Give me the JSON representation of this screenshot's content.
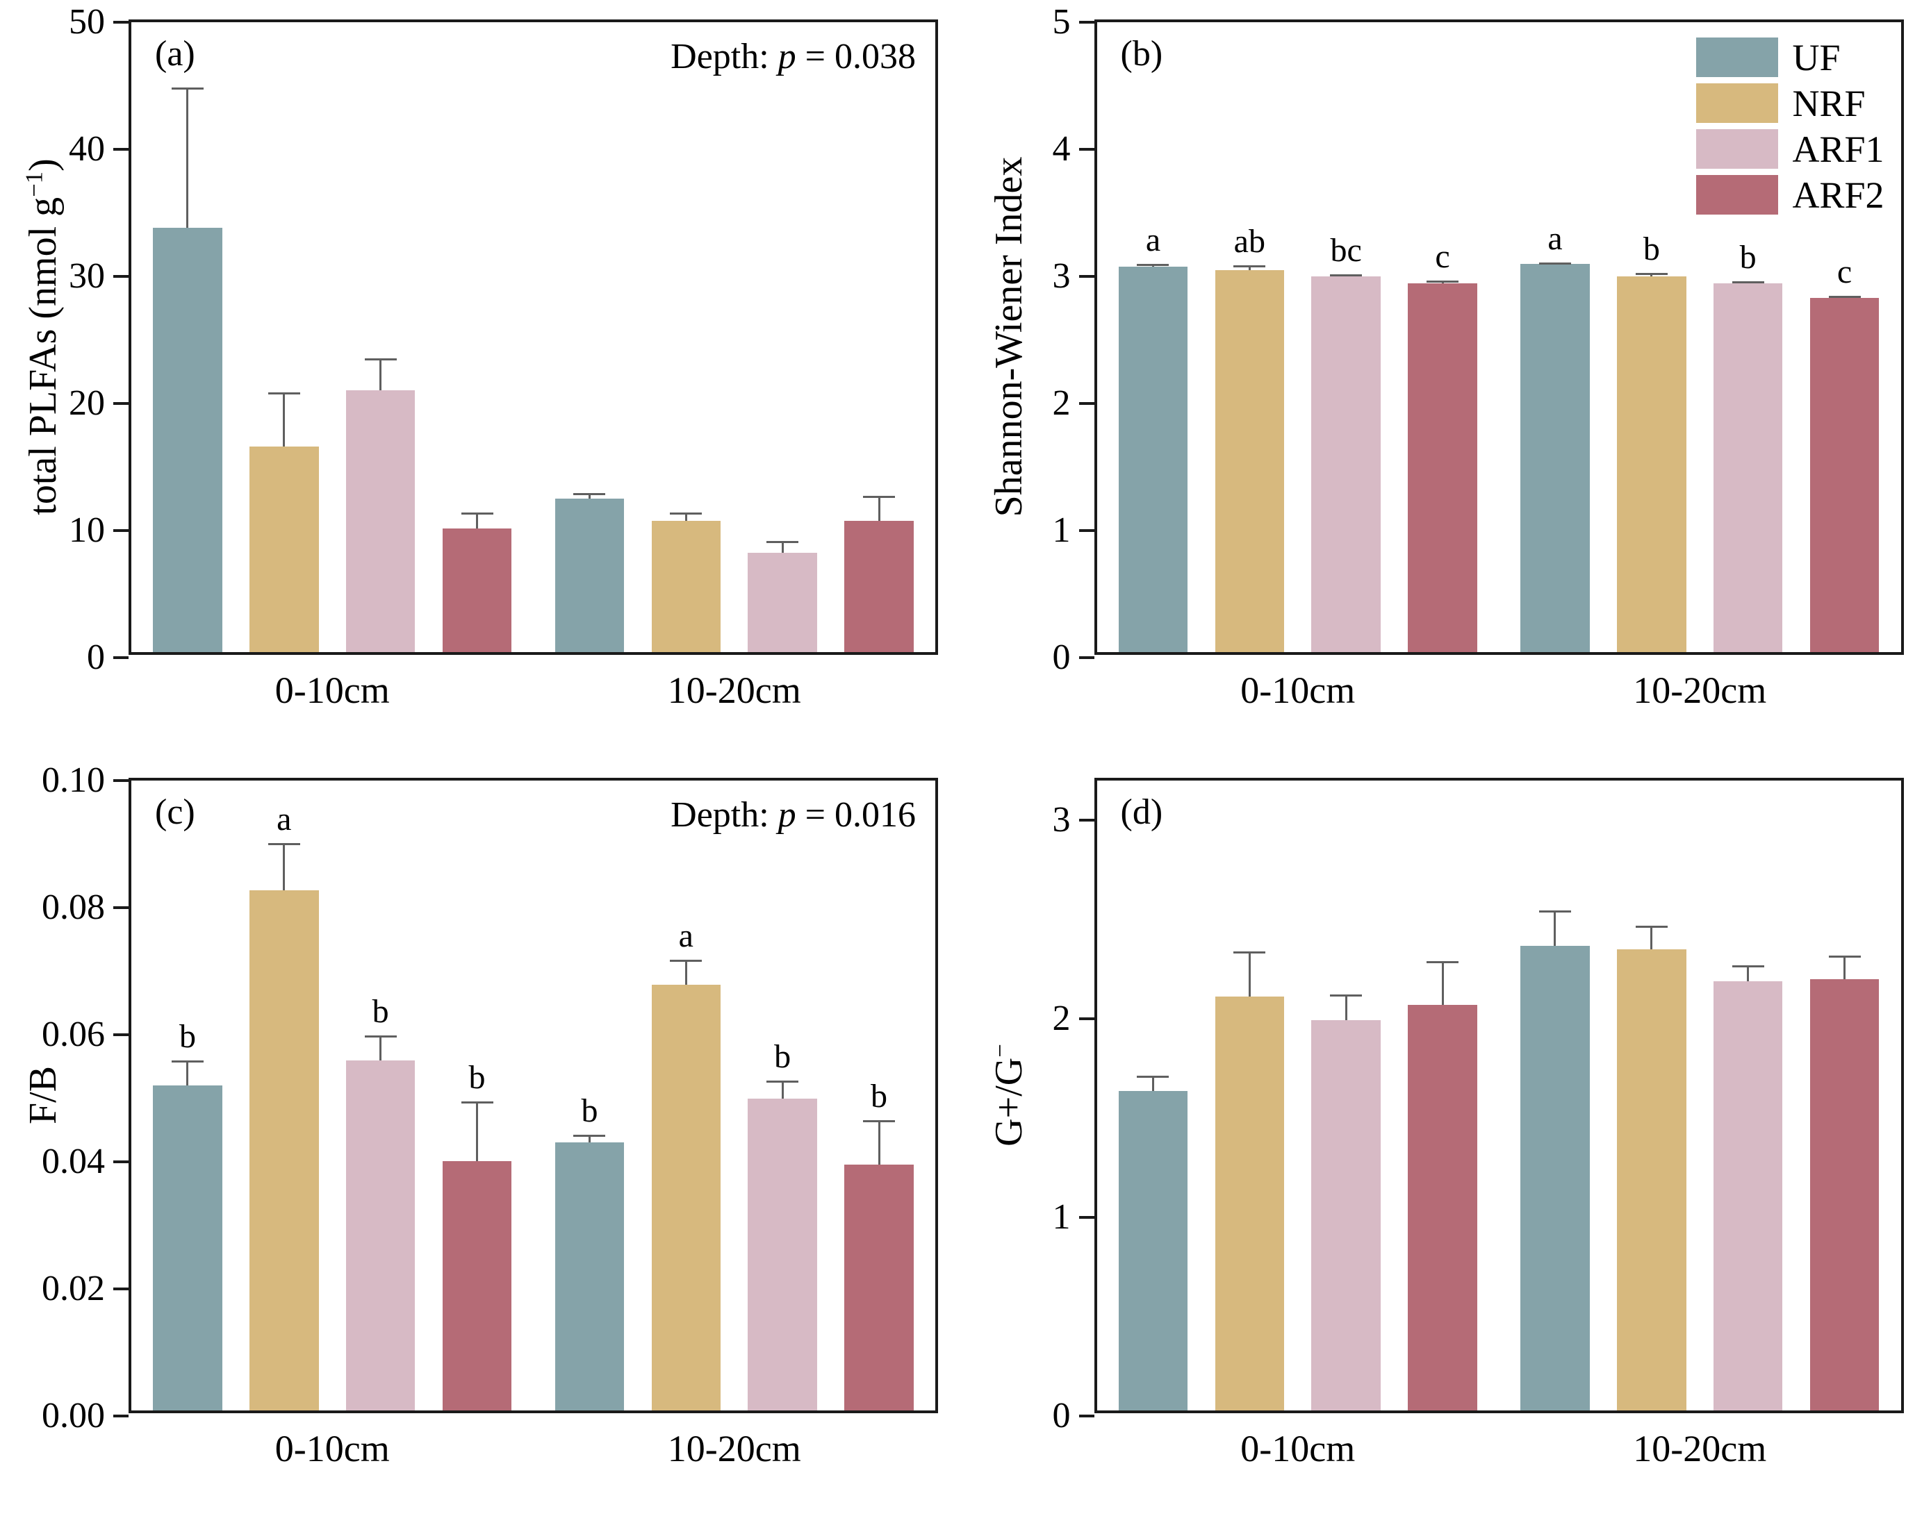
{
  "figure": {
    "background": "#ffffff"
  },
  "colors": {
    "UF": "#85A3A9",
    "NRF": "#D7B97E",
    "ARF1": "#D7BAC5",
    "ARF2": "#B56B76",
    "axis": "#1a1a1a",
    "error_bar": "#5f5f5f"
  },
  "legend": {
    "panel": "b",
    "position": "top-right",
    "items": [
      "UF",
      "NRF",
      "ARF1",
      "ARF2"
    ]
  },
  "chart_data": [
    {
      "id": "a",
      "type": "bar",
      "tag": "(a)",
      "ylabel_parts": [
        {
          "t": "total PLFAs (nmol g"
        },
        {
          "t": "−1",
          "sup": true
        },
        {
          "t": ")"
        }
      ],
      "ylabel_text": "total PLFAs (nmol g-1)",
      "ylim": [
        0,
        50
      ],
      "yticks": [
        {
          "v": 0,
          "t": "0"
        },
        {
          "v": 10,
          "t": "10"
        },
        {
          "v": 20,
          "t": "20"
        },
        {
          "v": 30,
          "t": "30"
        },
        {
          "v": 40,
          "t": "40"
        },
        {
          "v": 50,
          "t": "50"
        }
      ],
      "annotation_parts": [
        {
          "t": "Depth: "
        },
        {
          "t": "p",
          "i": true
        },
        {
          "t": " = 0.038"
        }
      ],
      "annotation_text": "Depth: p = 0.038",
      "categories": [
        "0-10cm",
        "10-20cm"
      ],
      "grid": false,
      "series": [
        {
          "name": "UF",
          "values": [
            33.7,
            12.2
          ],
          "errors": [
            11.1,
            0.4
          ],
          "letters": null
        },
        {
          "name": "NRF",
          "values": [
            16.3,
            10.4
          ],
          "errors": [
            4.3,
            0.7
          ],
          "letters": null
        },
        {
          "name": "ARF1",
          "values": [
            20.8,
            7.9
          ],
          "errors": [
            2.5,
            0.9
          ],
          "letters": null
        },
        {
          "name": "ARF2",
          "values": [
            9.8,
            10.4
          ],
          "errors": [
            1.3,
            2.0
          ],
          "letters": null
        }
      ]
    },
    {
      "id": "b",
      "type": "bar",
      "tag": "(b)",
      "ylabel_parts": [
        {
          "t": "Shannon-Wiener Index"
        }
      ],
      "ylabel_text": "Shannon-Wiener Index",
      "ylim": [
        0,
        5
      ],
      "yticks": [
        {
          "v": 0,
          "t": "0"
        },
        {
          "v": 1,
          "t": "1"
        },
        {
          "v": 2,
          "t": "2"
        },
        {
          "v": 3,
          "t": "3"
        },
        {
          "v": 4,
          "t": "4"
        },
        {
          "v": 5,
          "t": "5"
        }
      ],
      "annotation_parts": null,
      "annotation_text": null,
      "categories": [
        "0-10cm",
        "10-20cm"
      ],
      "grid": false,
      "show_legend": true,
      "series": [
        {
          "name": "UF",
          "values": [
            3.06,
            3.08
          ],
          "errors": [
            0.02,
            0.015
          ],
          "letters": [
            "a",
            "a"
          ]
        },
        {
          "name": "NRF",
          "values": [
            3.03,
            2.98
          ],
          "errors": [
            0.04,
            0.03
          ],
          "letters": [
            "ab",
            "b"
          ]
        },
        {
          "name": "ARF1",
          "values": [
            2.98,
            2.93
          ],
          "errors": [
            0.02,
            0.015
          ],
          "letters": [
            "bc",
            "b"
          ]
        },
        {
          "name": "ARF2",
          "values": [
            2.93,
            2.81
          ],
          "errors": [
            0.02,
            0.02
          ],
          "letters": [
            "c",
            "c"
          ]
        }
      ]
    },
    {
      "id": "c",
      "type": "bar",
      "tag": "(c)",
      "ylabel_parts": [
        {
          "t": "F/B"
        }
      ],
      "ylabel_text": "F/B",
      "ylim": [
        0,
        0.1
      ],
      "yticks": [
        {
          "v": 0,
          "t": "0.00"
        },
        {
          "v": 0.02,
          "t": "0.02"
        },
        {
          "v": 0.04,
          "t": "0.04"
        },
        {
          "v": 0.06,
          "t": "0.06"
        },
        {
          "v": 0.08,
          "t": "0.08"
        },
        {
          "v": 0.1,
          "t": "0.10"
        }
      ],
      "annotation_parts": [
        {
          "t": "Depth: "
        },
        {
          "t": "p",
          "i": true
        },
        {
          "t": " = 0.016"
        }
      ],
      "annotation_text": "Depth: p = 0.016",
      "categories": [
        "0-10cm",
        "10-20cm"
      ],
      "grid": false,
      "series": [
        {
          "name": "UF",
          "values": [
            0.0515,
            0.0425
          ],
          "errors": [
            0.004,
            0.0012
          ],
          "letters": [
            "b",
            "b"
          ]
        },
        {
          "name": "NRF",
          "values": [
            0.0825,
            0.0675
          ],
          "errors": [
            0.0075,
            0.004
          ],
          "letters": [
            "a",
            "a"
          ]
        },
        {
          "name": "ARF1",
          "values": [
            0.0555,
            0.0495
          ],
          "errors": [
            0.004,
            0.0028
          ],
          "letters": [
            "b",
            "b"
          ]
        },
        {
          "name": "ARF2",
          "values": [
            0.0395,
            0.039
          ],
          "errors": [
            0.0095,
            0.007
          ],
          "letters": [
            "b",
            "b"
          ]
        }
      ]
    },
    {
      "id": "d",
      "type": "bar",
      "tag": "(d)",
      "ylabel_parts": [
        {
          "t": "G+/G"
        },
        {
          "t": "−",
          "sup": true
        }
      ],
      "ylabel_text": "G+/G-",
      "ylim": [
        0,
        3.2
      ],
      "yticks": [
        {
          "v": 0,
          "t": "0"
        },
        {
          "v": 1,
          "t": "1"
        },
        {
          "v": 2,
          "t": "2"
        },
        {
          "v": 3,
          "t": "3"
        }
      ],
      "annotation_parts": null,
      "annotation_text": null,
      "categories": [
        "0-10cm",
        "10-20cm"
      ],
      "grid": false,
      "series": [
        {
          "name": "UF",
          "values": [
            1.62,
            2.36
          ],
          "errors": [
            0.08,
            0.18
          ],
          "letters": null
        },
        {
          "name": "NRF",
          "values": [
            2.1,
            2.34
          ],
          "errors": [
            0.23,
            0.12
          ],
          "letters": null
        },
        {
          "name": "ARF1",
          "values": [
            1.98,
            2.18
          ],
          "errors": [
            0.13,
            0.08
          ],
          "letters": null
        },
        {
          "name": "ARF2",
          "values": [
            2.06,
            2.19
          ],
          "errors": [
            0.22,
            0.12
          ],
          "letters": null
        }
      ]
    }
  ]
}
